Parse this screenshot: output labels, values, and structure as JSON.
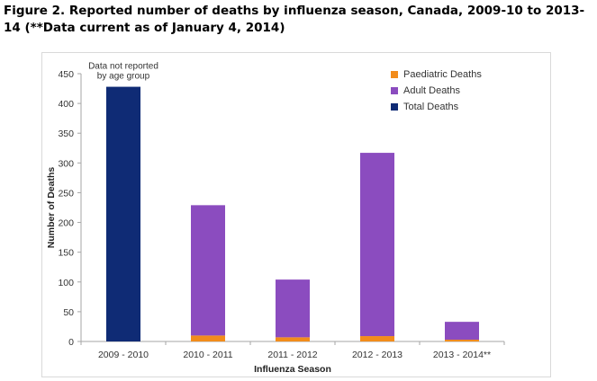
{
  "figure": {
    "title": "Figure 2. Reported number of deaths by influenza season, Canada, 2009-10 to 2013-14 (**Data current as of January 4, 2014)"
  },
  "chart_data": {
    "type": "bar",
    "stacked": true,
    "title": "Figure 2. Reported number of deaths by influenza season, Canada, 2009-10 to 2013-14 (**Data current as of January 4, 2014)",
    "xlabel": "Influenza Season",
    "ylabel": "Number of Deaths",
    "ylim": [
      0,
      450
    ],
    "yticks": [
      0,
      50,
      100,
      150,
      200,
      250,
      300,
      350,
      400,
      450
    ],
    "categories": [
      "2009 - 2010",
      "2010 - 2011",
      "2011 - 2012",
      "2012 - 2013",
      "2013 - 2014**"
    ],
    "series": [
      {
        "name": "Paediatric Deaths",
        "color": "#f28c1b",
        "values": [
          null,
          10,
          7,
          9,
          3
        ]
      },
      {
        "name": "Adult Deaths",
        "color": "#8b4cbf",
        "values": [
          null,
          219,
          97,
          308,
          30
        ]
      },
      {
        "name": "Total Deaths",
        "color": "#0f2b75",
        "values": [
          428,
          null,
          null,
          null,
          null
        ]
      }
    ],
    "annotations": [
      {
        "text": "Data not reported by age group",
        "category": "2009 - 2010",
        "lines": [
          "Data not reported",
          "by age group"
        ]
      }
    ],
    "legend_position": "top-right",
    "grid": false
  }
}
